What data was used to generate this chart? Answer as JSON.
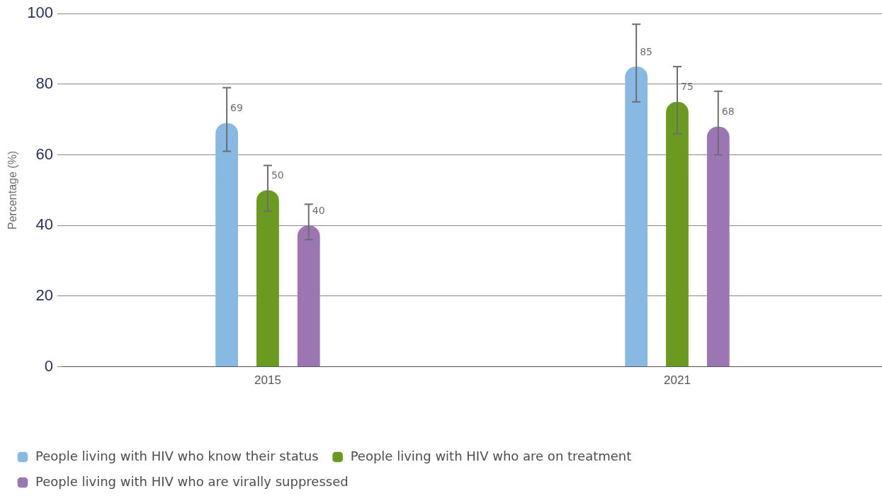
{
  "chart_data": {
    "type": "bar",
    "ylabel": "Percentage (%)",
    "categories": [
      "2015",
      "2021"
    ],
    "series": [
      {
        "name": "People living with HIV who know their status",
        "color": "#88b9e3",
        "values": [
          69,
          85
        ],
        "errors": [
          [
            61,
            79
          ],
          [
            75,
            97
          ]
        ]
      },
      {
        "name": "People living with HIV who are on treatment",
        "color": "#6a9a1f",
        "values": [
          50,
          75
        ],
        "errors": [
          [
            44,
            57
          ],
          [
            66,
            85
          ]
        ]
      },
      {
        "name": "People living with HIV who are virally suppressed",
        "color": "#9b76b2",
        "values": [
          40,
          68
        ],
        "errors": [
          [
            36,
            46
          ],
          [
            60,
            78
          ]
        ]
      }
    ],
    "ylim": [
      0,
      100
    ],
    "yticks": [
      0,
      20,
      40,
      60,
      80,
      100
    ],
    "grid": "y",
    "legend": "bottom left",
    "data_labels": true
  }
}
